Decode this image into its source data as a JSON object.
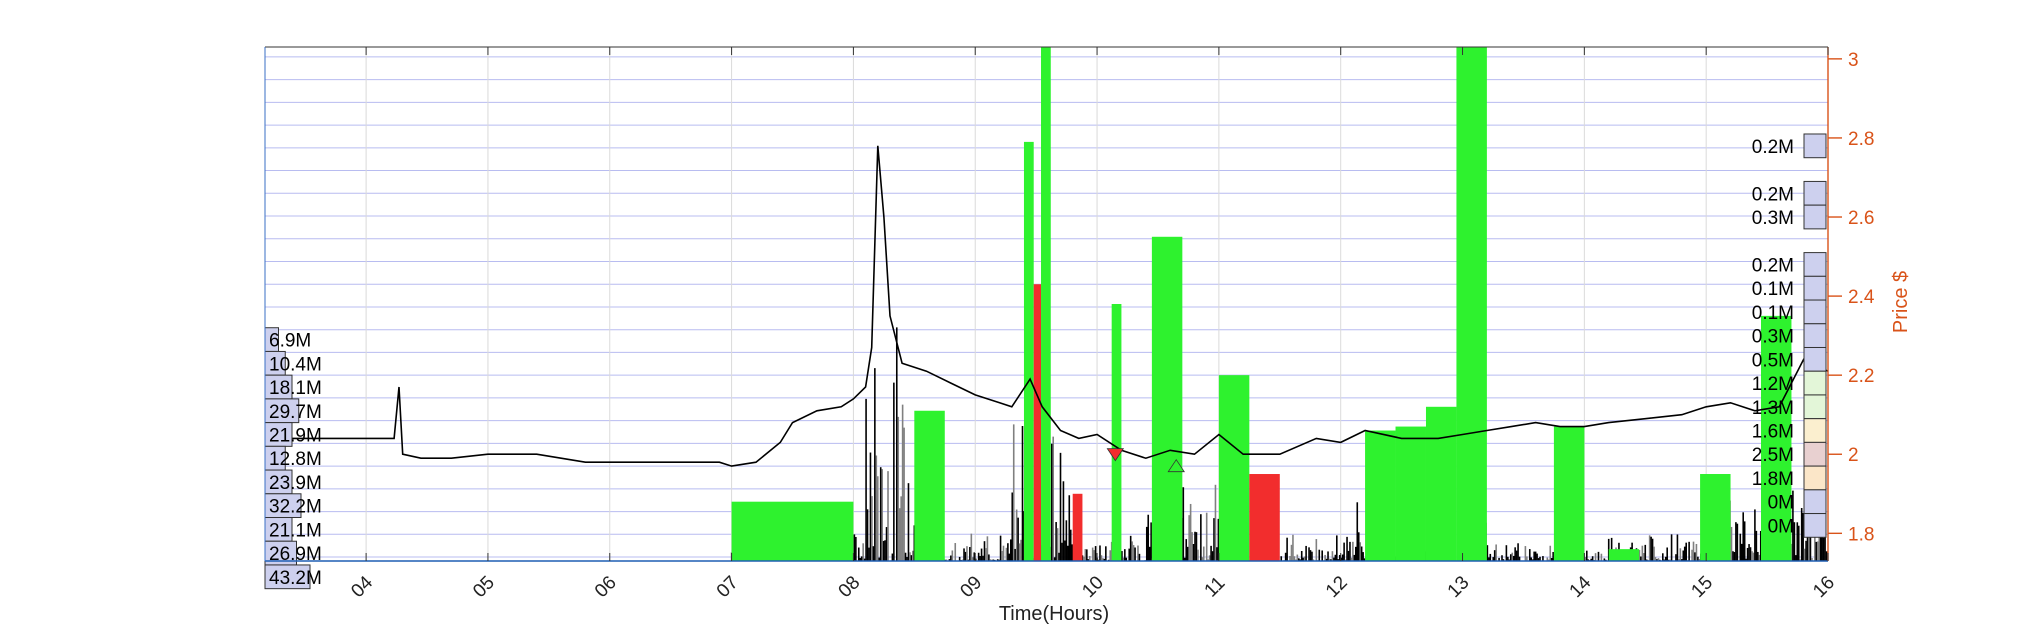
{
  "chart_data": {
    "type": "line",
    "xlabel": "Time(Hours)",
    "ylabel": "Price $",
    "x_ticks": [
      "04",
      "05",
      "06",
      "07",
      "08",
      "09",
      "10",
      "11",
      "12",
      "13",
      "14",
      "15",
      "16"
    ],
    "x_range": [
      3.17,
      16.0
    ],
    "y_ticks": [
      3,
      2.8,
      2.6,
      2.4,
      2.2,
      2,
      1.8
    ],
    "ylim": [
      1.73,
      3.03
    ],
    "grid": true,
    "colors": {
      "price": "#000000",
      "axis_right": "#D95319",
      "buy": "#2EF22E",
      "sell": "#F22D2D",
      "grid": "#B8BCF0"
    },
    "price_series": [
      [
        3.17,
        2.04
      ],
      [
        3.5,
        2.04
      ],
      [
        3.9,
        2.04
      ],
      [
        4.23,
        2.04
      ],
      [
        4.27,
        2.17
      ],
      [
        4.3,
        2.0
      ],
      [
        4.45,
        1.99
      ],
      [
        4.7,
        1.99
      ],
      [
        5.0,
        2.0
      ],
      [
        5.4,
        2.0
      ],
      [
        5.8,
        1.98
      ],
      [
        6.2,
        1.98
      ],
      [
        6.6,
        1.98
      ],
      [
        6.9,
        1.98
      ],
      [
        7.0,
        1.97
      ],
      [
        7.2,
        1.98
      ],
      [
        7.4,
        2.03
      ],
      [
        7.5,
        2.08
      ],
      [
        7.7,
        2.11
      ],
      [
        7.9,
        2.12
      ],
      [
        8.0,
        2.14
      ],
      [
        8.1,
        2.17
      ],
      [
        8.15,
        2.27
      ],
      [
        8.2,
        2.78
      ],
      [
        8.25,
        2.6
      ],
      [
        8.3,
        2.35
      ],
      [
        8.4,
        2.23
      ],
      [
        8.6,
        2.21
      ],
      [
        8.8,
        2.18
      ],
      [
        9.0,
        2.15
      ],
      [
        9.2,
        2.13
      ],
      [
        9.3,
        2.12
      ],
      [
        9.45,
        2.19
      ],
      [
        9.55,
        2.12
      ],
      [
        9.7,
        2.06
      ],
      [
        9.85,
        2.04
      ],
      [
        10.0,
        2.05
      ],
      [
        10.2,
        2.01
      ],
      [
        10.4,
        1.99
      ],
      [
        10.6,
        2.01
      ],
      [
        10.8,
        2.0
      ],
      [
        11.0,
        2.05
      ],
      [
        11.2,
        2.0
      ],
      [
        11.5,
        2.0
      ],
      [
        11.8,
        2.04
      ],
      [
        12.0,
        2.03
      ],
      [
        12.2,
        2.06
      ],
      [
        12.5,
        2.04
      ],
      [
        12.8,
        2.04
      ],
      [
        13.0,
        2.05
      ],
      [
        13.2,
        2.06
      ],
      [
        13.4,
        2.07
      ],
      [
        13.6,
        2.08
      ],
      [
        13.8,
        2.07
      ],
      [
        14.0,
        2.07
      ],
      [
        14.2,
        2.08
      ],
      [
        14.5,
        2.09
      ],
      [
        14.8,
        2.1
      ],
      [
        15.0,
        2.12
      ],
      [
        15.2,
        2.13
      ],
      [
        15.4,
        2.11
      ],
      [
        15.6,
        2.12
      ],
      [
        15.8,
        2.24
      ],
      [
        16.0,
        2.21
      ]
    ],
    "volume_bars": [
      {
        "x0": 7.0,
        "x1": 8.0,
        "top": 1.88,
        "side": "buy"
      },
      {
        "x0": 8.5,
        "x1": 8.75,
        "top": 2.11,
        "side": "buy"
      },
      {
        "x0": 9.4,
        "x1": 9.48,
        "top": 2.79,
        "side": "buy"
      },
      {
        "x0": 9.48,
        "x1": 9.54,
        "top": 2.43,
        "side": "sell"
      },
      {
        "x0": 9.54,
        "x1": 9.62,
        "top": 3.03,
        "side": "buy"
      },
      {
        "x0": 9.8,
        "x1": 9.88,
        "top": 1.9,
        "side": "sell"
      },
      {
        "x0": 10.12,
        "x1": 10.2,
        "top": 2.38,
        "side": "buy"
      },
      {
        "x0": 10.45,
        "x1": 10.7,
        "top": 2.55,
        "side": "buy"
      },
      {
        "x0": 11.0,
        "x1": 11.25,
        "top": 2.2,
        "side": "buy"
      },
      {
        "x0": 11.25,
        "x1": 11.5,
        "top": 1.95,
        "side": "sell"
      },
      {
        "x0": 12.2,
        "x1": 12.45,
        "top": 2.06,
        "side": "buy"
      },
      {
        "x0": 12.45,
        "x1": 12.7,
        "top": 2.07,
        "side": "buy"
      },
      {
        "x0": 12.7,
        "x1": 12.95,
        "top": 2.12,
        "side": "buy"
      },
      {
        "x0": 12.95,
        "x1": 13.2,
        "top": 3.03,
        "side": "buy"
      },
      {
        "x0": 13.75,
        "x1": 14.0,
        "top": 2.07,
        "side": "buy"
      },
      {
        "x0": 14.2,
        "x1": 14.45,
        "top": 1.76,
        "side": "buy"
      },
      {
        "x0": 14.95,
        "x1": 15.2,
        "top": 1.95,
        "side": "buy"
      },
      {
        "x0": 15.45,
        "x1": 15.7,
        "top": 2.35,
        "side": "buy"
      }
    ],
    "markers": [
      {
        "x": 10.15,
        "y": 2.0,
        "shape": "triangle-down",
        "color": "#F22D2D"
      },
      {
        "x": 10.65,
        "y": 1.97,
        "shape": "triangle-up",
        "color": "#2EF22E"
      }
    ],
    "left_volume_profile": [
      {
        "label": "6.9M",
        "y": 2.26,
        "width": 0.3
      },
      {
        "label": "10.4M",
        "y": 2.2,
        "width": 0.45
      },
      {
        "label": "18.1M",
        "y": 2.14,
        "width": 0.6
      },
      {
        "label": "29.7M",
        "y": 2.08,
        "width": 0.75
      },
      {
        "label": "21.9M",
        "y": 2.02,
        "width": 0.6
      },
      {
        "label": "12.8M",
        "y": 1.96,
        "width": 0.45
      },
      {
        "label": "23.9M",
        "y": 1.9,
        "width": 0.6
      },
      {
        "label": "32.2M",
        "y": 1.84,
        "width": 0.8
      },
      {
        "label": "21.1M",
        "y": 1.78,
        "width": 0.6
      },
      {
        "label": "26.9M",
        "y": 1.72,
        "width": 0.7
      },
      {
        "label": "43.2M",
        "y": 1.66,
        "width": 1.0
      }
    ],
    "right_volume_profile": [
      {
        "label": "0.2M",
        "y": 2.78,
        "fill": "#CDD0EE"
      },
      {
        "label": "0.2M",
        "y": 2.66,
        "fill": "#CDD0EE"
      },
      {
        "label": "0.3M",
        "y": 2.6,
        "fill": "#CDD0EE"
      },
      {
        "label": "0.2M",
        "y": 2.48,
        "fill": "#CDD0EE"
      },
      {
        "label": "0.1M",
        "y": 2.42,
        "fill": "#CDD0EE"
      },
      {
        "label": "0.1M",
        "y": 2.36,
        "fill": "#CDD0EE"
      },
      {
        "label": "0.3M",
        "y": 2.3,
        "fill": "#CDD0EE"
      },
      {
        "label": "0.5M",
        "y": 2.24,
        "fill": "#CDD0EE"
      },
      {
        "label": "1.2M",
        "y": 2.18,
        "fill": "#E3F6D8"
      },
      {
        "label": "1.3M",
        "y": 2.12,
        "fill": "#E3F6D8"
      },
      {
        "label": "1.6M",
        "y": 2.06,
        "fill": "#FBEFCF"
      },
      {
        "label": "2.5M",
        "y": 2.0,
        "fill": "#E8D0D0"
      },
      {
        "label": "1.8M",
        "y": 1.94,
        "fill": "#FBE6C8"
      },
      {
        "label": "0M",
        "y": 1.88,
        "fill": "#CDD0EE"
      },
      {
        "label": "0M",
        "y": 1.82,
        "fill": "#CDD0EE"
      }
    ]
  }
}
